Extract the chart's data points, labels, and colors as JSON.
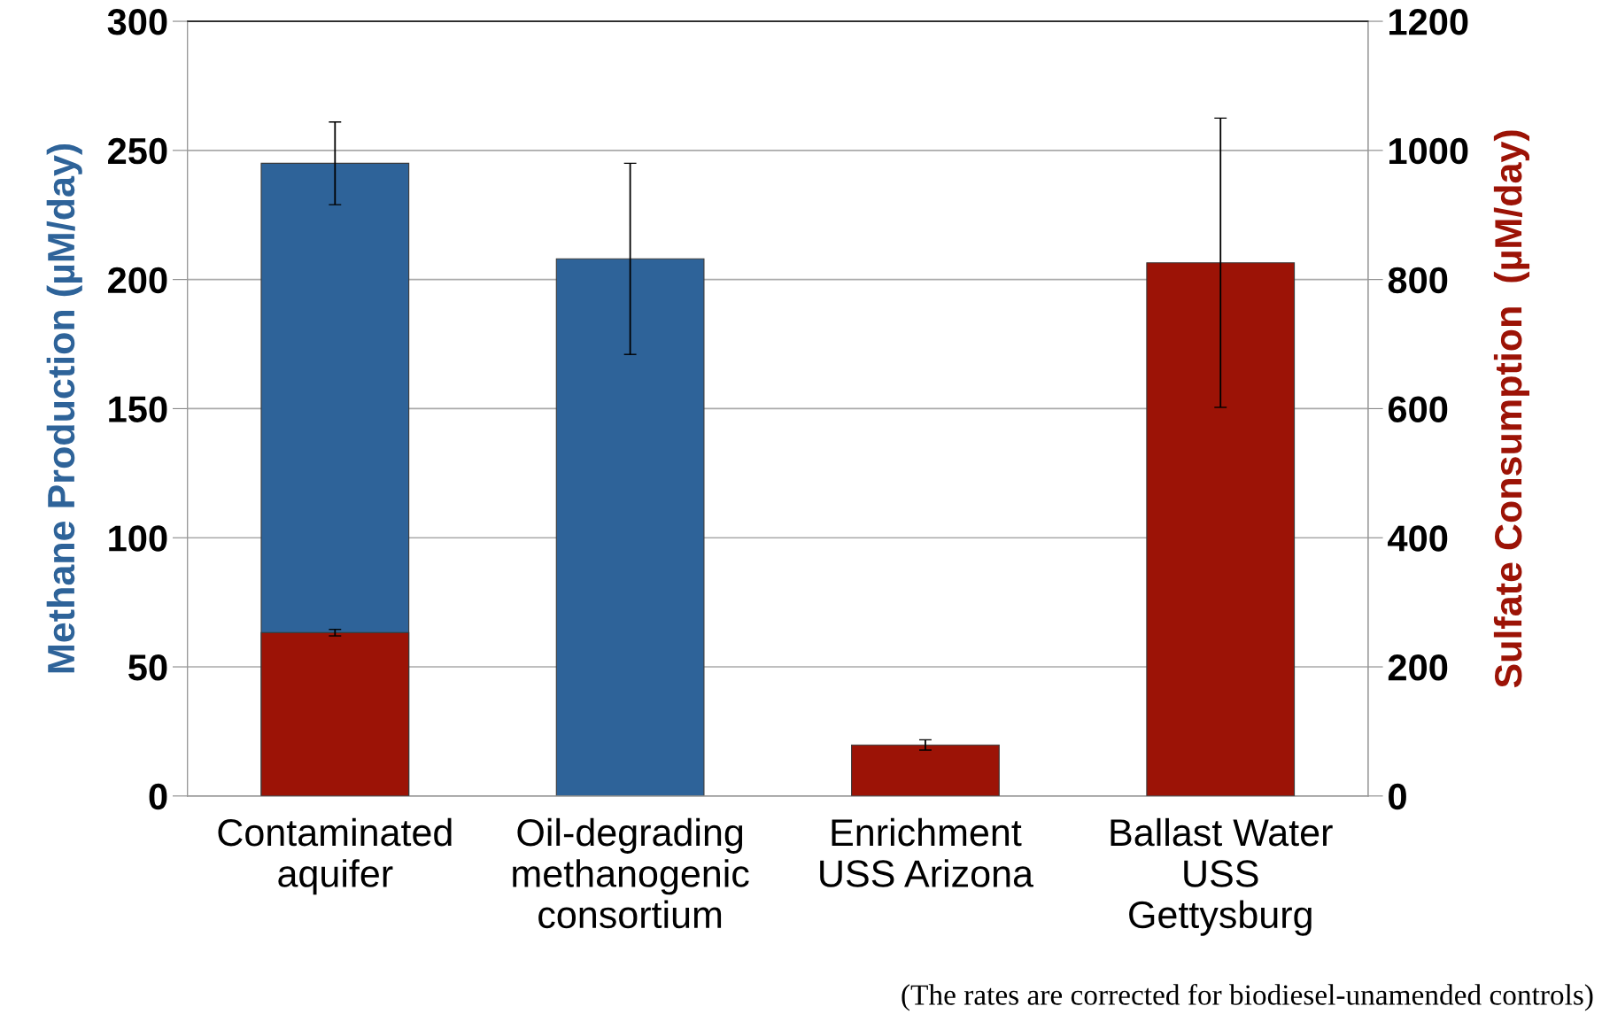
{
  "chart_data": {
    "type": "bar",
    "categories": [
      "Contaminated\naquifer",
      "Oil-degrading\nmethanogenic\nconsortium",
      "Enrichment\nUSS Arizona",
      "Ballast Water\nUSS\nGettysburg"
    ],
    "series": [
      {
        "color": "#2e6399",
        "values": [
          245,
          208,
          null,
          null
        ],
        "errors": [
          16,
          37,
          null,
          null
        ]
      },
      {
        "color": "#9c1306",
        "axis": "y2",
        "values": [
          253,
          null,
          79,
          826
        ],
        "errors": [
          5,
          null,
          8,
          224
        ]
      }
    ],
    "ylabel": "Methane Production (µM/day)",
    "y2label": "Sulfate Consumption  (µM/day)",
    "ylim": [
      0,
      300
    ],
    "yticks": [
      0,
      50,
      100,
      150,
      200,
      250,
      300
    ],
    "y2lim": [
      0,
      1200
    ],
    "y2ticks": [
      0,
      200,
      400,
      600,
      800,
      1000,
      1200
    ],
    "grid": "y",
    "legend": false,
    "annotations": [
      "(The rates are corrected for biodiesel-unamended controls)"
    ]
  }
}
